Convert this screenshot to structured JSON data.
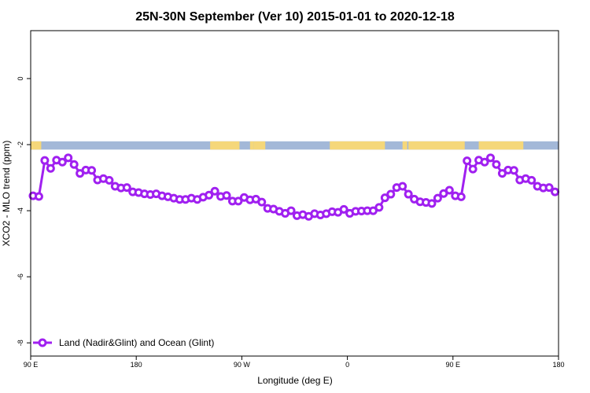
{
  "chart_data": {
    "type": "line",
    "title": "25N-30N September (Ver 10)   2015-01-01 to 2020-12-18",
    "xlabel": "Longitude (deg E)",
    "ylabel": "XCO2 - MLO trend (ppm)",
    "xlim": [
      90,
      540
    ],
    "ylim": [
      -8.4,
      1.45
    ],
    "x_ticks": [
      {
        "value": 90,
        "label": "90 E"
      },
      {
        "value": 180,
        "label": "180"
      },
      {
        "value": 270,
        "label": "90 W"
      },
      {
        "value": 360,
        "label": "0"
      },
      {
        "value": 450,
        "label": "90 E"
      },
      {
        "value": 540,
        "label": "180"
      }
    ],
    "y_ticks": [
      {
        "value": 0,
        "label": "0"
      },
      {
        "value": -2,
        "label": "-2"
      },
      {
        "value": -4,
        "label": "-4"
      },
      {
        "value": -6,
        "label": "-6"
      },
      {
        "value": -8,
        "label": "-8"
      }
    ],
    "land_mask": {
      "y_range": [
        -2.15,
        -1.9
      ],
      "ocean_color": "#a3b8d8",
      "land_color": "#f5d77a",
      "land_segments": [
        [
          90,
          99
        ],
        [
          243,
          268
        ],
        [
          277,
          280
        ],
        [
          280,
          290
        ],
        [
          345,
          392
        ],
        [
          407,
          411
        ],
        [
          412,
          460
        ],
        [
          472,
          510
        ]
      ]
    },
    "series": [
      {
        "name": "Land (Nadir&Glint) and Ocean (Glint)",
        "color": "#a020f0",
        "x": [
          92,
          97,
          102,
          107,
          112,
          117,
          122,
          127,
          132,
          137,
          142,
          147,
          152,
          157,
          162,
          167,
          172,
          177,
          182,
          187,
          192,
          197,
          202,
          207,
          212,
          217,
          222,
          227,
          232,
          237,
          242,
          247,
          252,
          257,
          262,
          267,
          272,
          277,
          282,
          287,
          292,
          297,
          302,
          307,
          312,
          317,
          322,
          327,
          332,
          337,
          342,
          347,
          352,
          357,
          362,
          367,
          372,
          377,
          382,
          387,
          392,
          397,
          402,
          407,
          412,
          417,
          422,
          427,
          432,
          437,
          442,
          447,
          452,
          457,
          462,
          467,
          472,
          477,
          482,
          487,
          492,
          497,
          502,
          507,
          512,
          517,
          522,
          527,
          532,
          537
        ],
        "y": [
          -3.55,
          -3.57,
          -2.48,
          -2.72,
          -2.47,
          -2.53,
          -2.4,
          -2.6,
          -2.87,
          -2.77,
          -2.78,
          -3.07,
          -3.03,
          -3.08,
          -3.26,
          -3.31,
          -3.3,
          -3.43,
          -3.45,
          -3.49,
          -3.51,
          -3.49,
          -3.55,
          -3.58,
          -3.62,
          -3.66,
          -3.66,
          -3.62,
          -3.66,
          -3.59,
          -3.53,
          -3.41,
          -3.57,
          -3.54,
          -3.71,
          -3.71,
          -3.6,
          -3.67,
          -3.65,
          -3.74,
          -3.93,
          -3.95,
          -4.02,
          -4.08,
          -4.0,
          -4.15,
          -4.12,
          -4.17,
          -4.09,
          -4.13,
          -4.09,
          -4.03,
          -4.05,
          -3.96,
          -4.08,
          -4.02,
          -4.01,
          -4.0,
          -4.0,
          -3.9,
          -3.61,
          -3.5,
          -3.3,
          -3.26,
          -3.5,
          -3.65,
          -3.73,
          -3.75,
          -3.78,
          -3.62,
          -3.48,
          -3.38,
          -3.55,
          -3.58,
          -2.49,
          -2.74,
          -2.47,
          -2.53,
          -2.4,
          -2.6,
          -2.87,
          -2.77,
          -2.78,
          -3.07,
          -3.03,
          -3.08,
          -3.26,
          -3.31,
          -3.3,
          -3.43
        ]
      }
    ],
    "legend": {
      "position": "bottom-left"
    },
    "grid": false
  }
}
